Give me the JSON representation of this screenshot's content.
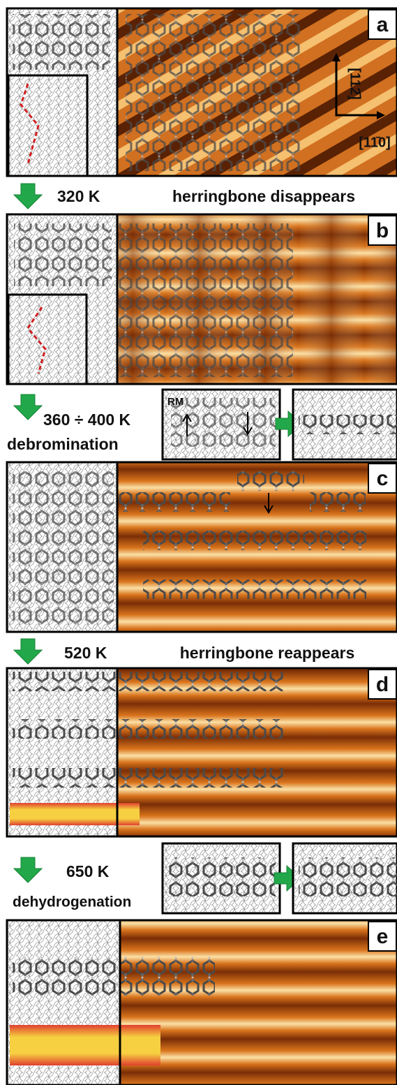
{
  "panels": [
    {
      "label": "a"
    },
    {
      "label": "b"
    },
    {
      "label": "c"
    },
    {
      "label": "d"
    },
    {
      "label": "e"
    }
  ],
  "directions": [
    "[112̄]",
    "[11̄0]"
  ],
  "steps": [
    {
      "temperature": "320 K",
      "description": "herringbone disappears"
    },
    {
      "temperature": "360 ÷ 400 K",
      "description": "debromination",
      "inset_label": "RM"
    },
    {
      "temperature": "520 K",
      "description": "herringbone reappears"
    },
    {
      "temperature": "650 K",
      "description": "dehydrogenation"
    }
  ]
}
